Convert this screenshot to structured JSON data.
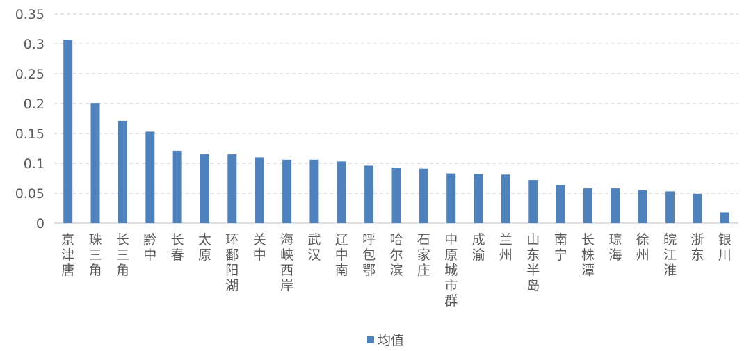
{
  "chart_data": {
    "type": "bar",
    "categories": [
      "京津唐",
      "珠三角",
      "长三角",
      "黔中",
      "长春",
      "太原",
      "环鄱阳湖",
      "关中",
      "海峡西岸",
      "武汉",
      "辽中南",
      "呼包鄂",
      "哈尔滨",
      "石家庄",
      "中原城市群",
      "成渝",
      "兰州",
      "山东半岛",
      "南宁",
      "长株潭",
      "琼海",
      "徐州",
      "皖江淮",
      "浙东",
      "银川"
    ],
    "series": [
      {
        "name": "均值",
        "values": [
          0.307,
          0.201,
          0.171,
          0.153,
          0.121,
          0.115,
          0.115,
          0.11,
          0.106,
          0.106,
          0.103,
          0.096,
          0.093,
          0.091,
          0.083,
          0.082,
          0.081,
          0.072,
          0.064,
          0.058,
          0.058,
          0.055,
          0.053,
          0.049,
          0.018
        ],
        "color": "#4F81BD"
      }
    ],
    "yticks": [
      "0",
      "0.05",
      "0.1",
      "0.15",
      "0.2",
      "0.25",
      "0.3",
      "0.35"
    ],
    "ylim": [
      0,
      0.35
    ],
    "grid": true,
    "grid_style": "dashed",
    "legend_position": "bottom-center",
    "title": "",
    "xlabel": "",
    "ylabel": ""
  }
}
